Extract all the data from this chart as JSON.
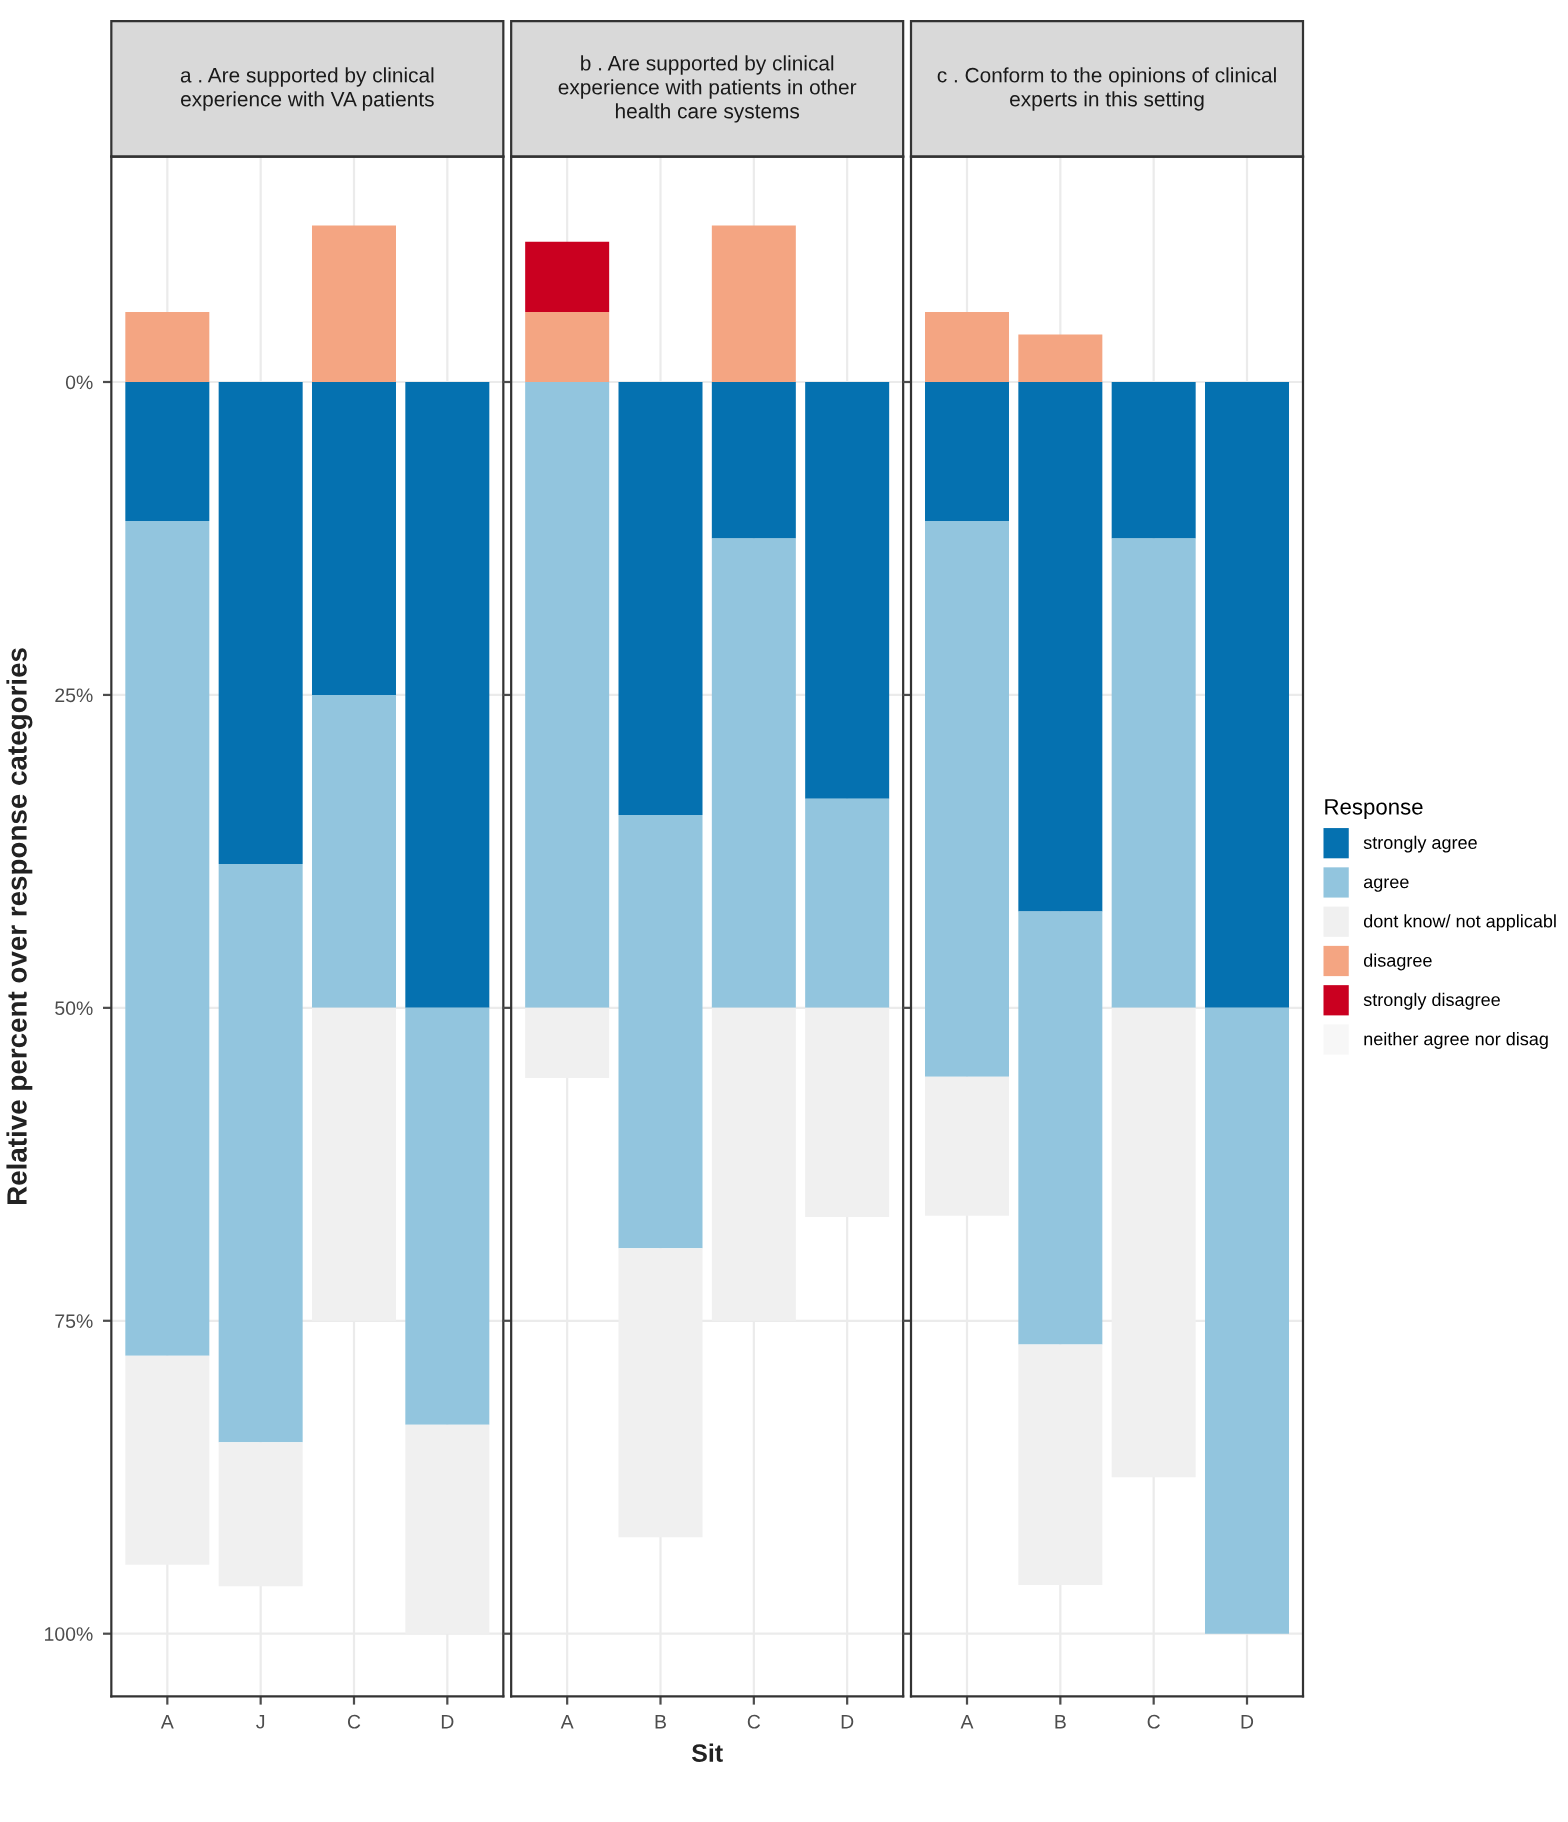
{
  "chart_data": [
    {
      "type": "bar",
      "stacked": true,
      "title": "a . Are supported by clinical\nexperience with VA patients",
      "ylabel": "Relative percent over response categories",
      "categories": [
        "A",
        "J",
        "C",
        "D"
      ],
      "ylim": [
        105,
        -18
      ],
      "yticks": [
        {
          "value": 0,
          "label": "0%"
        },
        {
          "value": 25,
          "label": "25%"
        },
        {
          "value": 50,
          "label": "50%"
        },
        {
          "value": 75,
          "label": "75%"
        },
        {
          "value": 100,
          "label": "100%"
        }
      ],
      "grid": true,
      "series": [
        {
          "color": "#0571b0",
          "values": [
            11.1,
            38.5,
            25,
            50
          ]
        },
        {
          "color": "#92c5de",
          "values": [
            66.7,
            46.2,
            25,
            33.3
          ]
        },
        {
          "color": "#f0f0f0",
          "values": [
            16.7,
            11.5,
            25,
            16.7
          ]
        },
        {
          "color": "#f4a582",
          "values": [
            -5.6,
            null,
            -12.5,
            null
          ]
        }
      ]
    },
    {
      "type": "bar",
      "stacked": true,
      "title": "b . Are supported by clinical\nexperience with patients in other\nhealth care systems",
      "xlabel": "Sit",
      "categories": [
        "A",
        "B",
        "C",
        "D"
      ],
      "ylim": [
        105,
        -18
      ],
      "yticks": [
        {
          "value": 0,
          "label": null
        },
        {
          "value": 25,
          "label": null
        },
        {
          "value": 50,
          "label": null
        },
        {
          "value": 75,
          "label": null
        },
        {
          "value": 100,
          "label": null
        }
      ],
      "tick_labels": "x",
      "grid": true,
      "series": [
        {
          "color": "#0571b0",
          "values": [
            null,
            34.6,
            12.5,
            33.3
          ]
        },
        {
          "color": "#92c5de",
          "values": [
            50,
            34.6,
            37.5,
            16.7
          ]
        },
        {
          "color": "#f0f0f0",
          "values": [
            5.6,
            23.1,
            25,
            16.7
          ]
        },
        {
          "color": "#f4a582",
          "values": [
            -5.6,
            null,
            -12.5,
            null
          ]
        },
        {
          "color": "#ca0020",
          "values": [
            -5.6,
            null,
            null,
            null
          ]
        }
      ]
    },
    {
      "type": "bar",
      "stacked": true,
      "title": "c . Conform to the opinions of clinical\nexperts in this setting",
      "legend_title": "Response",
      "categories": [
        "A",
        "B",
        "C",
        "D"
      ],
      "ylim": [
        105,
        -18
      ],
      "yticks": [
        {
          "value": 0,
          "label": null
        },
        {
          "value": 25,
          "label": null
        },
        {
          "value": 50,
          "label": null
        },
        {
          "value": 75,
          "label": null
        },
        {
          "value": 100,
          "label": null
        }
      ],
      "tick_labels": "x",
      "grid": true,
      "legend": "right",
      "series": [
        {
          "name": "strongly agree",
          "color": "#0571b0",
          "values": [
            11.1,
            42.3,
            12.5,
            50
          ]
        },
        {
          "name": "agree",
          "color": "#92c5de",
          "values": [
            44.4,
            34.6,
            37.5,
            50
          ]
        },
        {
          "name": "dont know/ not applicabl",
          "color": "#f0f0f0",
          "values": [
            11.1,
            19.2,
            37.5,
            null
          ]
        },
        {
          "name": "disagree",
          "color": "#f4a582",
          "values": [
            -5.6,
            -3.8,
            null,
            null
          ]
        },
        {
          "name": "strongly disagree",
          "color": "#ca0020",
          "values": [
            null,
            null,
            null,
            null
          ]
        },
        {
          "name": "neither agree nor disag",
          "color": "#f7f7f7",
          "values": [
            null,
            null,
            null,
            null
          ]
        }
      ]
    }
  ]
}
